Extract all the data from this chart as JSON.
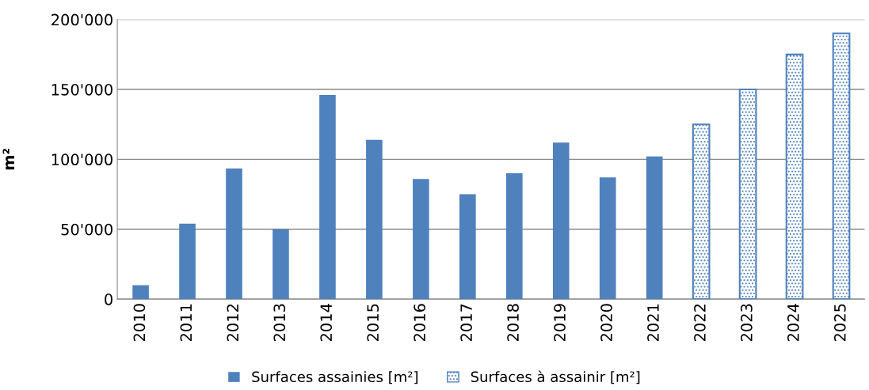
{
  "chart_data": {
    "type": "bar",
    "ylabel": "m²",
    "categories": [
      "2010",
      "2011",
      "2012",
      "2013",
      "2014",
      "2015",
      "2016",
      "2017",
      "2018",
      "2019",
      "2020",
      "2021",
      "2022",
      "2023",
      "2024",
      "2025"
    ],
    "series": [
      {
        "name": "Surfaces assainies [m²]",
        "color": "#4f81bd",
        "values": [
          10000,
          54000,
          93500,
          50000,
          146000,
          114000,
          86000,
          75000,
          90000,
          112000,
          87000,
          102000,
          null,
          null,
          null,
          null
        ]
      },
      {
        "name": "Surfaces à assainir [m²]",
        "color": "#4f81bd",
        "values": [
          null,
          null,
          null,
          null,
          null,
          null,
          null,
          null,
          null,
          null,
          null,
          null,
          125000,
          150000,
          175000,
          190000
        ]
      }
    ],
    "ylim": [
      0,
      200000
    ],
    "yticks": [
      0,
      {
        "value": 50000,
        "label": "50'000"
      },
      {
        "value": 100000,
        "label": "100'000"
      },
      {
        "value": 150000,
        "label": "150'000"
      },
      {
        "value": 200000,
        "label": "200'000"
      }
    ],
    "grid": "y",
    "legend": "bottom"
  }
}
